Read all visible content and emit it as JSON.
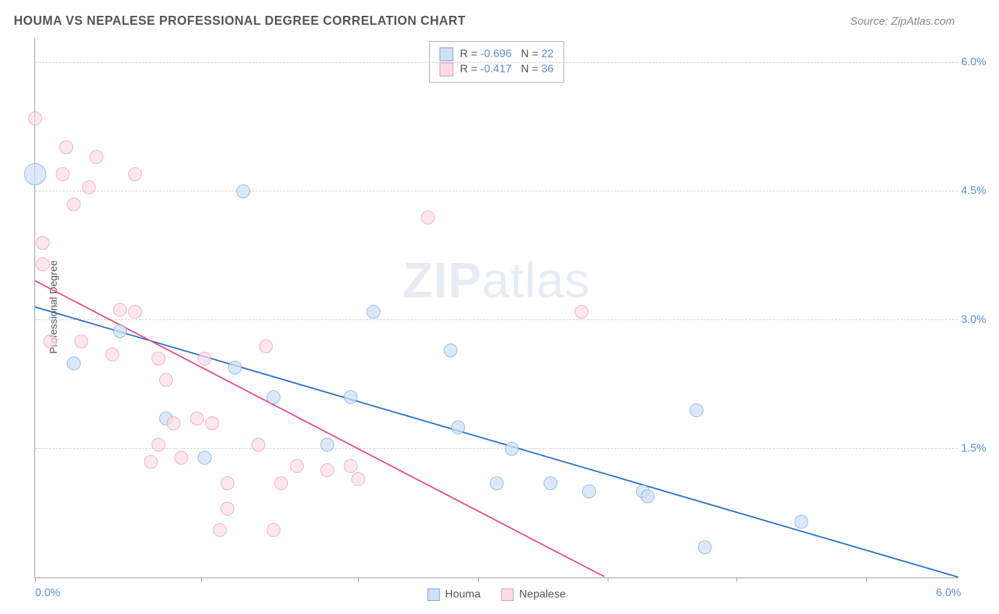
{
  "header": {
    "title": "HOUMA VS NEPALESE PROFESSIONAL DEGREE CORRELATION CHART",
    "source_prefix": "Source: ",
    "source": "ZipAtlas.com"
  },
  "y_axis_label": "Professional Degree",
  "watermark": {
    "bold": "ZIP",
    "rest": "atlas"
  },
  "chart": {
    "type": "scatter",
    "xlim": [
      0,
      6
    ],
    "ylim": [
      0,
      6.3
    ],
    "x_ticks_pct": [
      0,
      18,
      35,
      48,
      62,
      76,
      90
    ],
    "x_tick_labels": {
      "left": "0.0%",
      "right": "6.0%"
    },
    "y_gridlines": [
      1.5,
      3.0,
      4.5,
      6.0
    ],
    "y_tick_labels": [
      "1.5%",
      "3.0%",
      "4.5%",
      "6.0%"
    ],
    "grid_color": "#cccccc",
    "axis_color": "#999999",
    "background": "#ffffff",
    "point_radius": 10,
    "point_stroke_width": 1.5,
    "series": [
      {
        "name": "Houma",
        "fill": "#cfe1f5",
        "stroke": "#6fa3dd",
        "opacity": 0.75,
        "r_value": "-0.696",
        "n_value": "22",
        "trend": {
          "x1": 0.0,
          "y1": 3.15,
          "x2": 6.0,
          "y2": 0.0,
          "color": "#2e6fc9",
          "width": 2
        },
        "points": [
          {
            "x": 0.0,
            "y": 4.7,
            "r": 16
          },
          {
            "x": 0.25,
            "y": 2.5
          },
          {
            "x": 0.55,
            "y": 2.87
          },
          {
            "x": 1.35,
            "y": 4.5
          },
          {
            "x": 0.85,
            "y": 1.85
          },
          {
            "x": 1.1,
            "y": 1.4
          },
          {
            "x": 1.3,
            "y": 2.45
          },
          {
            "x": 1.55,
            "y": 2.1
          },
          {
            "x": 1.9,
            "y": 1.55
          },
          {
            "x": 2.05,
            "y": 2.1
          },
          {
            "x": 2.2,
            "y": 3.1
          },
          {
            "x": 2.7,
            "y": 2.65
          },
          {
            "x": 2.75,
            "y": 1.75
          },
          {
            "x": 3.0,
            "y": 1.1
          },
          {
            "x": 3.1,
            "y": 1.5
          },
          {
            "x": 3.35,
            "y": 1.1
          },
          {
            "x": 3.6,
            "y": 1.0
          },
          {
            "x": 3.95,
            "y": 1.0
          },
          {
            "x": 4.3,
            "y": 1.95
          },
          {
            "x": 4.35,
            "y": 0.35
          },
          {
            "x": 4.98,
            "y": 0.65
          },
          {
            "x": 3.98,
            "y": 0.95
          }
        ]
      },
      {
        "name": "Nepalese",
        "fill": "#fbdde4",
        "stroke": "#e690a7",
        "opacity": 0.7,
        "r_value": "-0.417",
        "n_value": "36",
        "trend": {
          "x1": 0.0,
          "y1": 3.45,
          "x2": 3.7,
          "y2": 0.0,
          "color": "#e74f80",
          "width": 2
        },
        "points": [
          {
            "x": 0.0,
            "y": 5.35
          },
          {
            "x": 0.05,
            "y": 3.65
          },
          {
            "x": 0.05,
            "y": 3.9
          },
          {
            "x": 0.1,
            "y": 2.75
          },
          {
            "x": 0.18,
            "y": 4.7
          },
          {
            "x": 0.2,
            "y": 5.02
          },
          {
            "x": 0.25,
            "y": 4.35
          },
          {
            "x": 0.3,
            "y": 2.75
          },
          {
            "x": 0.35,
            "y": 4.55
          },
          {
            "x": 0.4,
            "y": 4.9
          },
          {
            "x": 0.5,
            "y": 2.6
          },
          {
            "x": 0.55,
            "y": 3.12
          },
          {
            "x": 0.65,
            "y": 3.1
          },
          {
            "x": 0.65,
            "y": 4.7
          },
          {
            "x": 0.75,
            "y": 1.35
          },
          {
            "x": 0.8,
            "y": 2.55
          },
          {
            "x": 0.8,
            "y": 1.55
          },
          {
            "x": 0.85,
            "y": 2.3
          },
          {
            "x": 0.9,
            "y": 1.8
          },
          {
            "x": 0.95,
            "y": 1.4
          },
          {
            "x": 1.05,
            "y": 1.85
          },
          {
            "x": 1.1,
            "y": 2.55
          },
          {
            "x": 1.15,
            "y": 1.8
          },
          {
            "x": 1.2,
            "y": 0.55
          },
          {
            "x": 1.25,
            "y": 0.8
          },
          {
            "x": 1.25,
            "y": 1.1
          },
          {
            "x": 1.45,
            "y": 1.55
          },
          {
            "x": 1.5,
            "y": 2.7
          },
          {
            "x": 1.55,
            "y": 0.55
          },
          {
            "x": 1.6,
            "y": 1.1
          },
          {
            "x": 1.7,
            "y": 1.3
          },
          {
            "x": 1.9,
            "y": 1.25
          },
          {
            "x": 2.05,
            "y": 1.3
          },
          {
            "x": 2.1,
            "y": 1.15
          },
          {
            "x": 2.55,
            "y": 4.2
          },
          {
            "x": 3.55,
            "y": 3.1
          }
        ]
      }
    ]
  },
  "legend_top": {
    "rows": [
      {
        "swatch_fill": "#cfe1f5",
        "swatch_stroke": "#6fa3dd",
        "r_lbl": "R =",
        "r_val": "-0.696",
        "n_lbl": "N =",
        "n_val": "22"
      },
      {
        "swatch_fill": "#fbdde4",
        "swatch_stroke": "#e690a7",
        "r_lbl": "R =",
        "r_val": "-0.417",
        "n_lbl": "N =",
        "n_val": "36"
      }
    ]
  },
  "legend_bottom": {
    "items": [
      {
        "swatch_fill": "#cfe1f5",
        "swatch_stroke": "#6fa3dd",
        "label": "Houma"
      },
      {
        "swatch_fill": "#fbdde4",
        "swatch_stroke": "#e690a7",
        "label": "Nepalese"
      }
    ]
  }
}
